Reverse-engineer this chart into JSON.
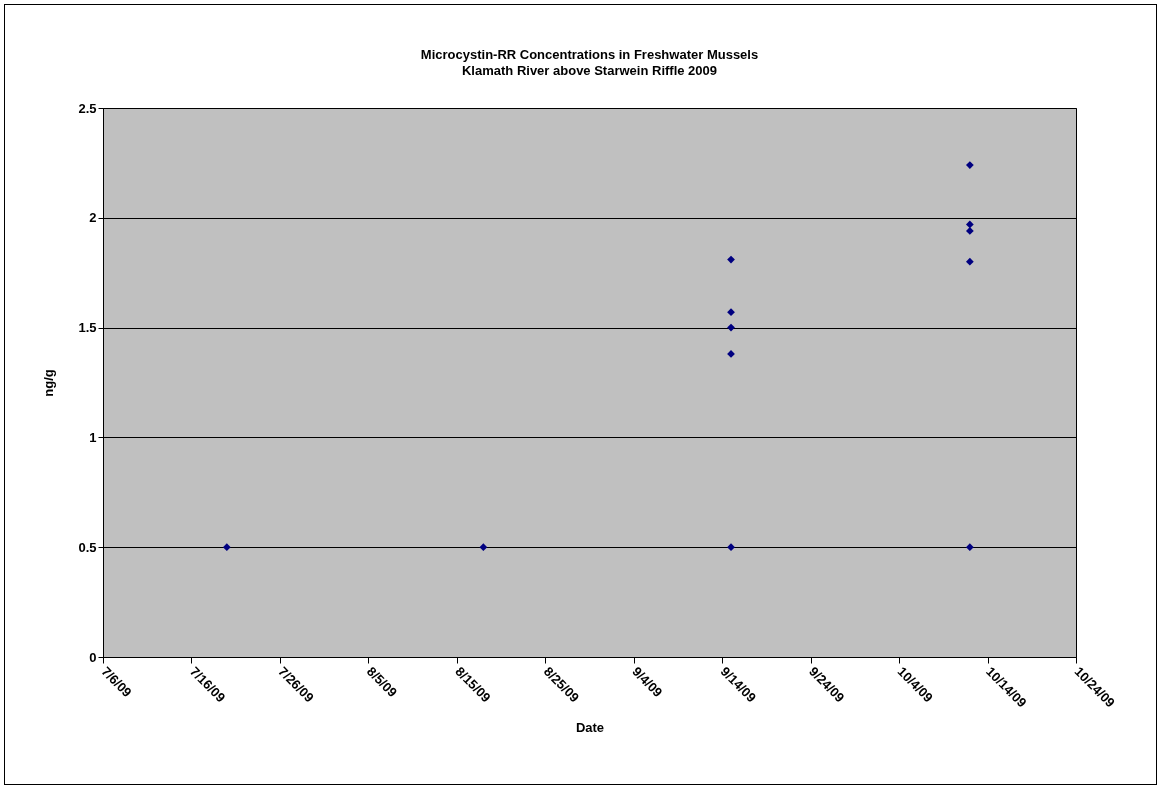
{
  "chart_data": {
    "type": "scatter",
    "title": "Microcystin-RR Concentrations in Freshwater Mussels",
    "subtitle": "Klamath River above Starwein Riffle 2009",
    "xlabel": "Date",
    "ylabel": "ng/g",
    "series": [
      {
        "color": "#000080",
        "x": [
          "2009-07-20",
          "2009-08-18",
          "2009-09-15",
          "2009-09-15",
          "2009-09-15",
          "2009-09-15",
          "2009-09-15",
          "2009-10-12",
          "2009-10-12",
          "2009-10-12",
          "2009-10-12",
          "2009-10-12"
        ],
        "values": [
          0.5,
          0.5,
          1.81,
          1.57,
          1.5,
          1.38,
          0.5,
          2.24,
          1.97,
          1.94,
          1.8,
          0.5
        ]
      }
    ],
    "xlim": [
      "2009-07-06",
      "2009-10-24"
    ],
    "xticks": [
      {
        "value": "2009-07-06",
        "label": "7/6/09"
      },
      {
        "value": "2009-07-16",
        "label": "7/16/09"
      },
      {
        "value": "2009-07-26",
        "label": "7/26/09"
      },
      {
        "value": "2009-08-05",
        "label": "8/5/09"
      },
      {
        "value": "2009-08-15",
        "label": "8/15/09"
      },
      {
        "value": "2009-08-25",
        "label": "8/25/09"
      },
      {
        "value": "2009-09-04",
        "label": "9/4/09"
      },
      {
        "value": "2009-09-14",
        "label": "9/14/09"
      },
      {
        "value": "2009-09-24",
        "label": "9/24/09"
      },
      {
        "value": "2009-10-04",
        "label": "10/4/09"
      },
      {
        "value": "2009-10-14",
        "label": "10/14/09"
      },
      {
        "value": "2009-10-24",
        "label": "10/24/09"
      }
    ],
    "ylim": [
      0,
      2.5
    ],
    "yticks": [
      0,
      0.5,
      1,
      1.5,
      2,
      2.5
    ],
    "grid": "y",
    "marker": "diamond"
  }
}
